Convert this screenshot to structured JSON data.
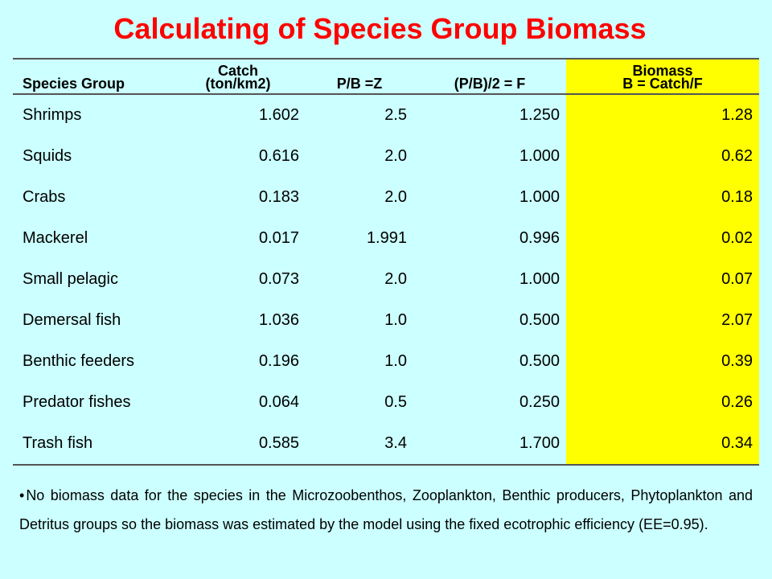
{
  "title": "Calculating of Species Group Biomass",
  "table": {
    "headers": {
      "species": "Species Group",
      "catch_line1": "Catch",
      "catch_line2": "(ton/km2)",
      "pb": "P/B =Z",
      "f": "(P/B)/2 = F",
      "biomass_line1": "Biomass",
      "biomass_line2": "B = Catch/F"
    },
    "rows": [
      {
        "species": "Shrimps",
        "catch": "1.602",
        "pb": "2.5",
        "f": "1.250",
        "biomass": "1.28"
      },
      {
        "species": "Squids",
        "catch": "0.616",
        "pb": "2.0",
        "f": "1.000",
        "biomass": "0.62"
      },
      {
        "species": "Crabs",
        "catch": "0.183",
        "pb": "2.0",
        "f": "1.000",
        "biomass": "0.18"
      },
      {
        "species": "Mackerel",
        "catch": "0.017",
        "pb": "1.991",
        "f": "0.996",
        "biomass": "0.02"
      },
      {
        "species": "Small pelagic",
        "catch": "0.073",
        "pb": "2.0",
        "f": "1.000",
        "biomass": "0.07"
      },
      {
        "species": "Demersal fish",
        "catch": "1.036",
        "pb": "1.0",
        "f": "0.500",
        "biomass": "2.07"
      },
      {
        "species": "Benthic feeders",
        "catch": "0.196",
        "pb": "1.0",
        "f": "0.500",
        "biomass": "0.39"
      },
      {
        "species": "Predator fishes",
        "catch": "0.064",
        "pb": "0.5",
        "f": "0.250",
        "biomass": "0.26"
      },
      {
        "species": "Trash fish",
        "catch": "0.585",
        "pb": "3.4",
        "f": "1.700",
        "biomass": "0.34"
      }
    ]
  },
  "note": {
    "bullet": "•",
    "text": "No biomass data for the species in the Microzoobenthos, Zooplankton, Benthic producers, Phytoplankton and Detritus groups so the biomass was estimated by the model using the fixed ecotrophic efficiency (EE=0.95)."
  },
  "colors": {
    "background": "#ccffff",
    "title": "#ff0000",
    "highlight": "#ffff00"
  }
}
